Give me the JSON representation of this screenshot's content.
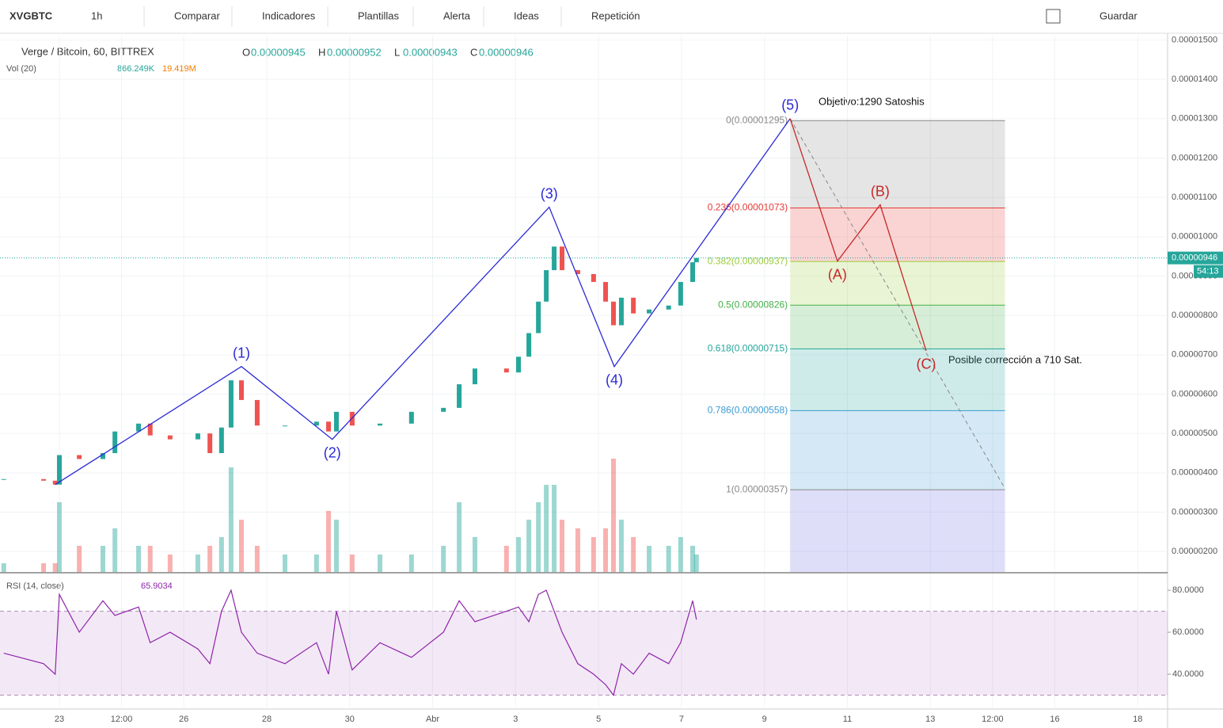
{
  "toolbar": {
    "symbol": "XVGBTC",
    "interval": "1h",
    "items": [
      "Comparar",
      "Indicadores",
      "Plantillas",
      "Alerta",
      "Ideas",
      "Repetición"
    ],
    "save": "Guardar"
  },
  "legend": {
    "title": "Verge / Bitcoin, 60, BITTREX",
    "ohlc": [
      {
        "key": "O",
        "value": "0.00000945"
      },
      {
        "key": "H",
        "value": "0.00000952"
      },
      {
        "key": "L",
        "value": "0.00000943"
      },
      {
        "key": "C",
        "value": "0.00000946"
      }
    ],
    "volume": {
      "name": "Vol (20)",
      "value": "866.249K",
      "ma": "19.419M"
    },
    "rsi": {
      "name": "RSI (14, close)",
      "value": "65.9034"
    }
  },
  "annotations": {
    "target": "Objetivo:1290 Satoshis",
    "correction": "Posible corrección a 710 Sat."
  },
  "chart_data": [
    {
      "type": "candlestick",
      "x": [
        -0.34,
        0.62,
        0.9,
        1.0,
        1.48,
        2.05,
        2.34,
        2.91,
        3.19,
        3.67,
        4.34,
        4.63,
        4.91,
        5.14,
        5.39,
        5.77,
        6.44,
        7.2,
        7.49,
        7.68,
        8.06,
        8.73,
        9.49,
        10.26,
        10.64,
        11.02,
        11.78,
        12.07,
        12.32,
        12.55,
        12.74,
        12.93,
        13.12,
        13.5,
        13.88,
        14.17,
        14.36,
        14.55,
        14.84,
        15.22,
        15.69,
        15.98,
        16.27,
        16.36
      ],
      "close": [
        3.84e-06,
        3.8e-06,
        3.7e-06,
        4.45e-06,
        4.35e-06,
        4.5e-06,
        5.05e-06,
        5.25e-06,
        4.95e-06,
        4.85e-06,
        5e-06,
        4.5e-06,
        5.15e-06,
        6.35e-06,
        5.85e-06,
        5.2e-06,
        5.2e-06,
        5.3e-06,
        5.05e-06,
        5.55e-06,
        5.2e-06,
        5.25e-06,
        5.55e-06,
        5.65e-06,
        6.25e-06,
        6.65e-06,
        6.55e-06,
        6.95e-06,
        7.55e-06,
        8.35e-06,
        9.15e-06,
        9.75e-06,
        9.15e-06,
        9.05e-06,
        8.85e-06,
        8.35e-06,
        7.75e-06,
        8.45e-06,
        8.05e-06,
        8.15e-06,
        8.25e-06,
        8.85e-06,
        9.35e-06,
        9.46e-06
      ],
      "volume": [
        1,
        1,
        1,
        8,
        3,
        3,
        5,
        3,
        3,
        2,
        2,
        3,
        4,
        12,
        6,
        3,
        2,
        2,
        7,
        6,
        2,
        2,
        2,
        3,
        8,
        4,
        3,
        4,
        6,
        8,
        10,
        10,
        6,
        5,
        4,
        5,
        13,
        6,
        4,
        3,
        3,
        4,
        3,
        2
      ],
      "up_color": "#26a69a",
      "down_color": "#ef5350",
      "xlim": [
        -0.431,
        27.72
      ],
      "xticks": [
        {
          "value": 1,
          "label": "23"
        },
        {
          "value": 2.5,
          "label": "12:00"
        },
        {
          "value": 4,
          "label": "26"
        },
        {
          "value": 6,
          "label": "28"
        },
        {
          "value": 8,
          "label": "30"
        },
        {
          "value": 10,
          "label": "Abr"
        },
        {
          "value": 12,
          "label": "3"
        },
        {
          "value": 14,
          "label": "5"
        },
        {
          "value": 16,
          "label": "7"
        },
        {
          "value": 18,
          "label": "9"
        },
        {
          "value": 20,
          "label": "11"
        },
        {
          "value": 22,
          "label": "13"
        },
        {
          "value": 23.5,
          "label": "12:00"
        },
        {
          "value": 25,
          "label": "16"
        },
        {
          "value": 27,
          "label": "18"
        }
      ],
      "ylim": [
        1.48e-06,
        1.511e-05
      ],
      "yticks": [
        {
          "value": 2e-06,
          "label": "0.00000200"
        },
        {
          "value": 3e-06,
          "label": "0.00000300"
        },
        {
          "value": 4e-06,
          "label": "0.00000400"
        },
        {
          "value": 5e-06,
          "label": "0.00000500"
        },
        {
          "value": 6e-06,
          "label": "0.00000600"
        },
        {
          "value": 7e-06,
          "label": "0.00000700"
        },
        {
          "value": 8e-06,
          "label": "0.00000800"
        },
        {
          "value": 9e-06,
          "label": "0.00000900"
        },
        {
          "value": 1e-05,
          "label": "0.00001000"
        },
        {
          "value": 1.1e-05,
          "label": "0.00001100"
        },
        {
          "value": 1.2e-05,
          "label": "0.00001200"
        },
        {
          "value": 1.3e-05,
          "label": "0.00001300"
        },
        {
          "value": 1.4e-05,
          "label": "0.00001400"
        },
        {
          "value": 1.5e-05,
          "label": "0.00001500"
        }
      ],
      "last_price": {
        "value": 9.46e-06,
        "label": "0.00000946"
      },
      "countdown": "54:13",
      "waves": {
        "color": "#2a2ad6",
        "x": [
          0.9,
          5.39,
          7.58,
          12.81,
          14.38,
          18.62
        ],
        "y": [
          3.7e-06,
          6.7e-06,
          4.85e-06,
          1.075e-05,
          6.7e-06,
          1.3e-05
        ],
        "labels": [
          null,
          "(1)",
          "(2)",
          "(3)",
          "(4)",
          "(5)"
        ]
      },
      "correction": {
        "color": "#c62828",
        "x": [
          18.62,
          19.76,
          20.79,
          21.9
        ],
        "y": [
          1.3e-05,
          9.38e-06,
          1.081e-05,
          7.1e-06
        ],
        "labels": [
          null,
          "(A)",
          "(B)",
          "(C)"
        ]
      },
      "trend": {
        "x": [
          18.62,
          23.8
        ],
        "y": [
          1.3e-05,
          3.6e-06
        ]
      },
      "fib": {
        "x_range": [
          18.62,
          23.8
        ],
        "levels": [
          {
            "price": 1.295e-05,
            "label": "0(0.00001295)",
            "color": "#888888"
          },
          {
            "price": 1.073e-05,
            "label": "0.236(0.00001073)",
            "color": "#e53935"
          },
          {
            "price": 9.37e-06,
            "label": "0.382(0.00000937)",
            "color": "#9ccc3a"
          },
          {
            "price": 8.26e-06,
            "label": "0.5(0.00000826)",
            "color": "#43b047"
          },
          {
            "price": 7.15e-06,
            "label": "0.618(0.00000715)",
            "color": "#26a69a"
          },
          {
            "price": 5.58e-06,
            "label": "0.786(0.00000558)",
            "color": "#3d9bd1"
          },
          {
            "price": 3.57e-06,
            "label": "1(0.00000357)",
            "color": "#8a8a8a"
          }
        ],
        "below_color": "#6a6ae0"
      }
    },
    {
      "type": "line",
      "name": "RSI",
      "color": "#8e24aa",
      "x": [
        -0.34,
        0.62,
        0.9,
        1.0,
        1.48,
        2.05,
        2.34,
        2.91,
        3.19,
        3.67,
        4.34,
        4.63,
        4.91,
        5.14,
        5.39,
        5.77,
        6.44,
        7.2,
        7.49,
        7.68,
        8.06,
        8.73,
        9.49,
        10.26,
        10.64,
        11.02,
        11.78,
        12.07,
        12.32,
        12.55,
        12.74,
        12.93,
        13.12,
        13.5,
        13.88,
        14.17,
        14.36,
        14.55,
        14.84,
        15.22,
        15.69,
        15.98,
        16.27,
        16.36
      ],
      "values": [
        50,
        45,
        40,
        78,
        60,
        75,
        68,
        72,
        55,
        60,
        52,
        45,
        70,
        80,
        60,
        50,
        45,
        55,
        40,
        70,
        42,
        55,
        48,
        60,
        75,
        65,
        70,
        72,
        65,
        78,
        80,
        70,
        60,
        45,
        40,
        35,
        30,
        45,
        40,
        50,
        45,
        55,
        75,
        66
      ],
      "ylim": [
        23.4,
        85.7
      ],
      "band": [
        30,
        70
      ],
      "yticks": [
        {
          "value": 40,
          "label": "40.0000"
        },
        {
          "value": 60,
          "label": "60.0000"
        },
        {
          "value": 80,
          "label": "80.0000"
        }
      ]
    }
  ]
}
